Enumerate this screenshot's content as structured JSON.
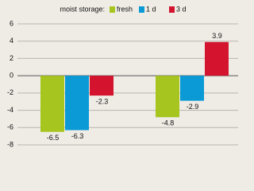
{
  "chart_data": {
    "type": "bar",
    "legend_title": "moist storage:",
    "categories": [
      null,
      null
    ],
    "series": [
      {
        "name": "fresh",
        "color": "#a6c51f",
        "values": [
          -6.5,
          -4.8
        ]
      },
      {
        "name": "1 d",
        "color": "#0b9ad5",
        "values": [
          -6.3,
          -2.9
        ]
      },
      {
        "name": "3 d",
        "color": "#d4142f",
        "values": [
          -2.3,
          3.9
        ]
      }
    ],
    "ylim": [
      -8,
      6
    ],
    "yticks": [
      -8,
      -6,
      -4,
      -2,
      0,
      2,
      4,
      6
    ],
    "grid": true,
    "legend": "top"
  }
}
